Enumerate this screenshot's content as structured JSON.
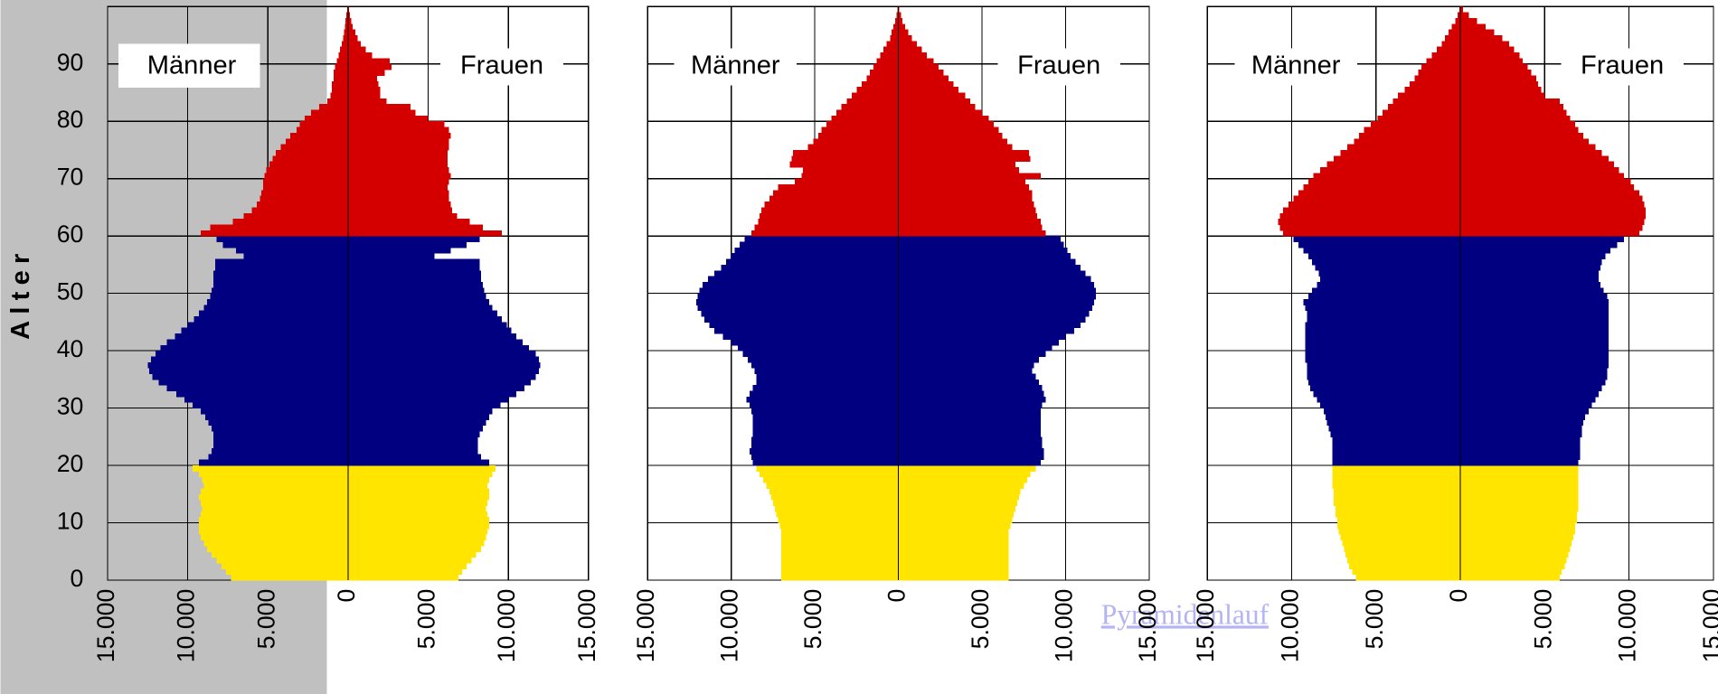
{
  "link": "Pyramidenlauf",
  "chart_data": [
    {
      "type": "pyramid",
      "ylabel": "Alter",
      "y": [
        0,
        1,
        2,
        3,
        4,
        5,
        6,
        7,
        8,
        9,
        10,
        11,
        12,
        13,
        14,
        15,
        16,
        17,
        18,
        19,
        20,
        21,
        22,
        23,
        24,
        25,
        26,
        27,
        28,
        29,
        30,
        31,
        32,
        33,
        34,
        35,
        36,
        37,
        38,
        39,
        40,
        41,
        42,
        43,
        44,
        45,
        46,
        47,
        48,
        49,
        50,
        51,
        52,
        53,
        54,
        55,
        56,
        57,
        58,
        59,
        60,
        61,
        62,
        63,
        64,
        65,
        66,
        67,
        68,
        69,
        70,
        71,
        72,
        73,
        74,
        75,
        76,
        77,
        78,
        79,
        80,
        81,
        82,
        83,
        84,
        85,
        86,
        87,
        88,
        89,
        90,
        91,
        92,
        93,
        94,
        95,
        96,
        97,
        98,
        99
      ],
      "ylim": [
        0,
        100
      ],
      "yticks": [
        0,
        10,
        20,
        30,
        40,
        50,
        60,
        70,
        80,
        90
      ],
      "xlim": [
        -15000,
        15000
      ],
      "xticks": [
        {
          "value": -15000,
          "label": "15.000"
        },
        {
          "value": -10000,
          "label": "10.000"
        },
        {
          "value": -5000,
          "label": "5.000"
        },
        0,
        {
          "value": 5000,
          "label": "5.000"
        },
        {
          "value": 10000,
          "label": "10.000"
        },
        {
          "value": 15000,
          "label": "15.000"
        }
      ],
      "grid": true,
      "color_bands": [
        {
          "from": 0,
          "color": "#ffe500"
        },
        {
          "from": 20,
          "color": "#000080"
        },
        {
          "from": 60,
          "color": "#d40000"
        }
      ],
      "series": [
        {
          "name": "Männer",
          "values": [
            7300,
            7600,
            7900,
            8200,
            8500,
            8800,
            9000,
            9200,
            9300,
            9300,
            9300,
            9200,
            9100,
            9200,
            9300,
            9200,
            9000,
            9100,
            9300,
            9700,
            9300,
            8700,
            8500,
            8400,
            8400,
            8400,
            8500,
            8700,
            8900,
            9200,
            9700,
            10200,
            10700,
            11300,
            11800,
            12200,
            12400,
            12500,
            12300,
            12000,
            11700,
            11300,
            10800,
            10400,
            10000,
            9600,
            9300,
            9000,
            8800,
            8600,
            8500,
            8400,
            8400,
            8400,
            8300,
            8300,
            6500,
            7000,
            7800,
            8200,
            9200,
            8600,
            7200,
            6500,
            6000,
            5700,
            5500,
            5400,
            5300,
            5300,
            5200,
            5100,
            4900,
            4700,
            4500,
            4200,
            3900,
            3600,
            3200,
            3000,
            2700,
            2300,
            1800,
            1300,
            1100,
            1000,
            1000,
            900,
            900,
            800,
            700,
            600,
            500,
            400,
            300,
            250,
            200,
            150,
            100,
            50
          ]
        },
        {
          "name": "Frauen",
          "values": [
            6900,
            7100,
            7400,
            7700,
            8000,
            8300,
            8500,
            8600,
            8700,
            8800,
            8800,
            8700,
            8600,
            8700,
            8800,
            8800,
            8700,
            8800,
            9000,
            9200,
            8800,
            8300,
            8100,
            8100,
            8100,
            8200,
            8400,
            8600,
            8800,
            9000,
            9500,
            10000,
            10500,
            11000,
            11400,
            11700,
            11900,
            12000,
            11900,
            11700,
            11300,
            10900,
            10500,
            10200,
            9900,
            9600,
            9300,
            9000,
            8800,
            8600,
            8500,
            8400,
            8300,
            8300,
            8200,
            8200,
            5400,
            6400,
            7400,
            8200,
            9600,
            8400,
            7600,
            6800,
            6500,
            6400,
            6300,
            6300,
            6200,
            6300,
            6400,
            6300,
            6200,
            6200,
            6200,
            6300,
            6300,
            6400,
            6300,
            6000,
            5000,
            4200,
            3900,
            2400,
            2000,
            2000,
            1900,
            1800,
            2300,
            2700,
            2600,
            1500,
            1100,
            800,
            600,
            450,
            300,
            200,
            120,
            60
          ]
        }
      ]
    },
    {
      "type": "pyramid",
      "y": [
        0,
        1,
        2,
        3,
        4,
        5,
        6,
        7,
        8,
        9,
        10,
        11,
        12,
        13,
        14,
        15,
        16,
        17,
        18,
        19,
        20,
        21,
        22,
        23,
        24,
        25,
        26,
        27,
        28,
        29,
        30,
        31,
        32,
        33,
        34,
        35,
        36,
        37,
        38,
        39,
        40,
        41,
        42,
        43,
        44,
        45,
        46,
        47,
        48,
        49,
        50,
        51,
        52,
        53,
        54,
        55,
        56,
        57,
        58,
        59,
        60,
        61,
        62,
        63,
        64,
        65,
        66,
        67,
        68,
        69,
        70,
        71,
        72,
        73,
        74,
        75,
        76,
        77,
        78,
        79,
        80,
        81,
        82,
        83,
        84,
        85,
        86,
        87,
        88,
        89,
        90,
        91,
        92,
        93,
        94,
        95,
        96,
        97,
        98,
        99
      ],
      "ylim": [
        0,
        100
      ],
      "yticks": [
        0,
        10,
        20,
        30,
        40,
        50,
        60,
        70,
        80,
        90
      ],
      "xlim": [
        -15000,
        15000
      ],
      "xticks": [
        {
          "value": -15000,
          "label": "15.000"
        },
        {
          "value": -10000,
          "label": "10.000"
        },
        {
          "value": -5000,
          "label": "5.000"
        },
        0,
        {
          "value": 5000,
          "label": "5.000"
        },
        {
          "value": 10000,
          "label": "10.000"
        },
        {
          "value": 15000,
          "label": "15.000"
        }
      ],
      "grid": true,
      "color_bands": [
        {
          "from": 0,
          "color": "#ffe500"
        },
        {
          "from": 20,
          "color": "#000080"
        },
        {
          "from": 60,
          "color": "#d40000"
        }
      ],
      "series": [
        {
          "name": "Männer",
          "values": [
            7000,
            7000,
            7000,
            7000,
            7000,
            7000,
            7000,
            7000,
            7000,
            7100,
            7200,
            7300,
            7400,
            7500,
            7600,
            7700,
            7900,
            8100,
            8300,
            8500,
            8700,
            8800,
            8900,
            8800,
            8800,
            8700,
            8700,
            8700,
            8700,
            8800,
            8900,
            9100,
            8900,
            8700,
            8500,
            8500,
            8600,
            8800,
            9000,
            9300,
            9600,
            10000,
            10500,
            11000,
            11300,
            11600,
            11800,
            12000,
            12100,
            12000,
            11900,
            11700,
            11400,
            11000,
            10600,
            10300,
            10000,
            9800,
            9500,
            9200,
            8800,
            8600,
            8400,
            8300,
            8200,
            8000,
            7700,
            7500,
            7200,
            6200,
            5800,
            5700,
            6500,
            6400,
            6300,
            5400,
            5100,
            4800,
            4600,
            4300,
            4000,
            3700,
            3400,
            3100,
            2800,
            2500,
            2200,
            1900,
            1700,
            1500,
            1300,
            1100,
            900,
            700,
            500,
            400,
            300,
            200,
            120,
            60
          ]
        },
        {
          "name": "Frauen",
          "values": [
            6600,
            6600,
            6600,
            6600,
            6600,
            6600,
            6600,
            6600,
            6600,
            6700,
            6800,
            6900,
            7000,
            7100,
            7200,
            7300,
            7500,
            7700,
            7900,
            8200,
            8500,
            8700,
            8700,
            8600,
            8600,
            8500,
            8500,
            8500,
            8500,
            8500,
            8600,
            8800,
            8700,
            8600,
            8400,
            8200,
            8000,
            8100,
            8400,
            8800,
            9200,
            9600,
            10000,
            10500,
            10900,
            11200,
            11400,
            11600,
            11700,
            11800,
            11800,
            11700,
            11500,
            11200,
            10900,
            10600,
            10300,
            10100,
            9900,
            9700,
            8800,
            8600,
            8500,
            8300,
            8200,
            8100,
            8000,
            8000,
            7800,
            7600,
            8500,
            7200,
            7000,
            7900,
            7800,
            6800,
            6500,
            6200,
            6000,
            5700,
            5400,
            5000,
            4600,
            4300,
            4000,
            3600,
            3300,
            3000,
            2700,
            2400,
            2100,
            1700,
            1400,
            1100,
            800,
            600,
            400,
            250,
            150,
            60
          ]
        }
      ]
    },
    {
      "type": "pyramid",
      "y": [
        0,
        1,
        2,
        3,
        4,
        5,
        6,
        7,
        8,
        9,
        10,
        11,
        12,
        13,
        14,
        15,
        16,
        17,
        18,
        19,
        20,
        21,
        22,
        23,
        24,
        25,
        26,
        27,
        28,
        29,
        30,
        31,
        32,
        33,
        34,
        35,
        36,
        37,
        38,
        39,
        40,
        41,
        42,
        43,
        44,
        45,
        46,
        47,
        48,
        49,
        50,
        51,
        52,
        53,
        54,
        55,
        56,
        57,
        58,
        59,
        60,
        61,
        62,
        63,
        64,
        65,
        66,
        67,
        68,
        69,
        70,
        71,
        72,
        73,
        74,
        75,
        76,
        77,
        78,
        79,
        80,
        81,
        82,
        83,
        84,
        85,
        86,
        87,
        88,
        89,
        90,
        91,
        92,
        93,
        94,
        95,
        96,
        97,
        98,
        99
      ],
      "ylim": [
        0,
        100
      ],
      "yticks": [
        0,
        10,
        20,
        30,
        40,
        50,
        60,
        70,
        80,
        90
      ],
      "xlim": [
        -15000,
        15000
      ],
      "xticks": [
        {
          "value": -15000,
          "label": "15.000"
        },
        {
          "value": -10000,
          "label": "10.000"
        },
        {
          "value": -5000,
          "label": "5.000"
        },
        0,
        {
          "value": 5000,
          "label": "5.000"
        },
        {
          "value": 10000,
          "label": "10.000"
        },
        {
          "value": 15000,
          "label": "15.000"
        }
      ],
      "grid": true,
      "color_bands": [
        {
          "from": 0,
          "color": "#ffe500"
        },
        {
          "from": 20,
          "color": "#000080"
        },
        {
          "from": 60,
          "color": "#d40000"
        }
      ],
      "series": [
        {
          "name": "Männer",
          "values": [
            6200,
            6400,
            6600,
            6700,
            6800,
            6900,
            7000,
            7100,
            7200,
            7300,
            7300,
            7400,
            7400,
            7500,
            7500,
            7500,
            7600,
            7600,
            7600,
            7600,
            7600,
            7600,
            7600,
            7600,
            7600,
            7700,
            7800,
            7900,
            8000,
            8100,
            8300,
            8500,
            8700,
            8900,
            9000,
            9100,
            9100,
            9100,
            9200,
            9200,
            9200,
            9200,
            9200,
            9200,
            9200,
            9100,
            9100,
            9200,
            9300,
            9000,
            8800,
            8500,
            8300,
            8400,
            8600,
            8800,
            9000,
            9300,
            9600,
            9900,
            10500,
            10700,
            10800,
            10700,
            10500,
            10200,
            9900,
            9600,
            9300,
            9000,
            8700,
            8300,
            7900,
            7500,
            7100,
            6700,
            6300,
            6000,
            5700,
            5300,
            4900,
            4600,
            4300,
            4000,
            3700,
            3300,
            3000,
            2700,
            2500,
            2300,
            2000,
            1700,
            1400,
            1100,
            900,
            700,
            500,
            300,
            150,
            60
          ]
        },
        {
          "name": "Frauen",
          "values": [
            5900,
            6000,
            6200,
            6300,
            6400,
            6500,
            6600,
            6700,
            6800,
            6800,
            6900,
            6900,
            7000,
            7000,
            7000,
            7000,
            7000,
            7000,
            7000,
            7000,
            7000,
            7100,
            7100,
            7100,
            7100,
            7200,
            7200,
            7300,
            7400,
            7600,
            7800,
            8000,
            8200,
            8400,
            8600,
            8700,
            8700,
            8800,
            8800,
            8800,
            8800,
            8800,
            8800,
            8800,
            8800,
            8800,
            8800,
            8800,
            8800,
            8700,
            8500,
            8300,
            8200,
            8200,
            8300,
            8400,
            8600,
            8900,
            9300,
            9700,
            10600,
            10800,
            10900,
            11000,
            11000,
            10900,
            10800,
            10600,
            10300,
            10100,
            9700,
            9400,
            9100,
            8800,
            8400,
            8000,
            7600,
            7300,
            7000,
            6800,
            6500,
            6300,
            6100,
            5900,
            5000,
            4800,
            4600,
            4500,
            4200,
            4000,
            3700,
            3500,
            3200,
            2900,
            2500,
            2000,
            1500,
            1000,
            500,
            150
          ]
        }
      ]
    }
  ]
}
